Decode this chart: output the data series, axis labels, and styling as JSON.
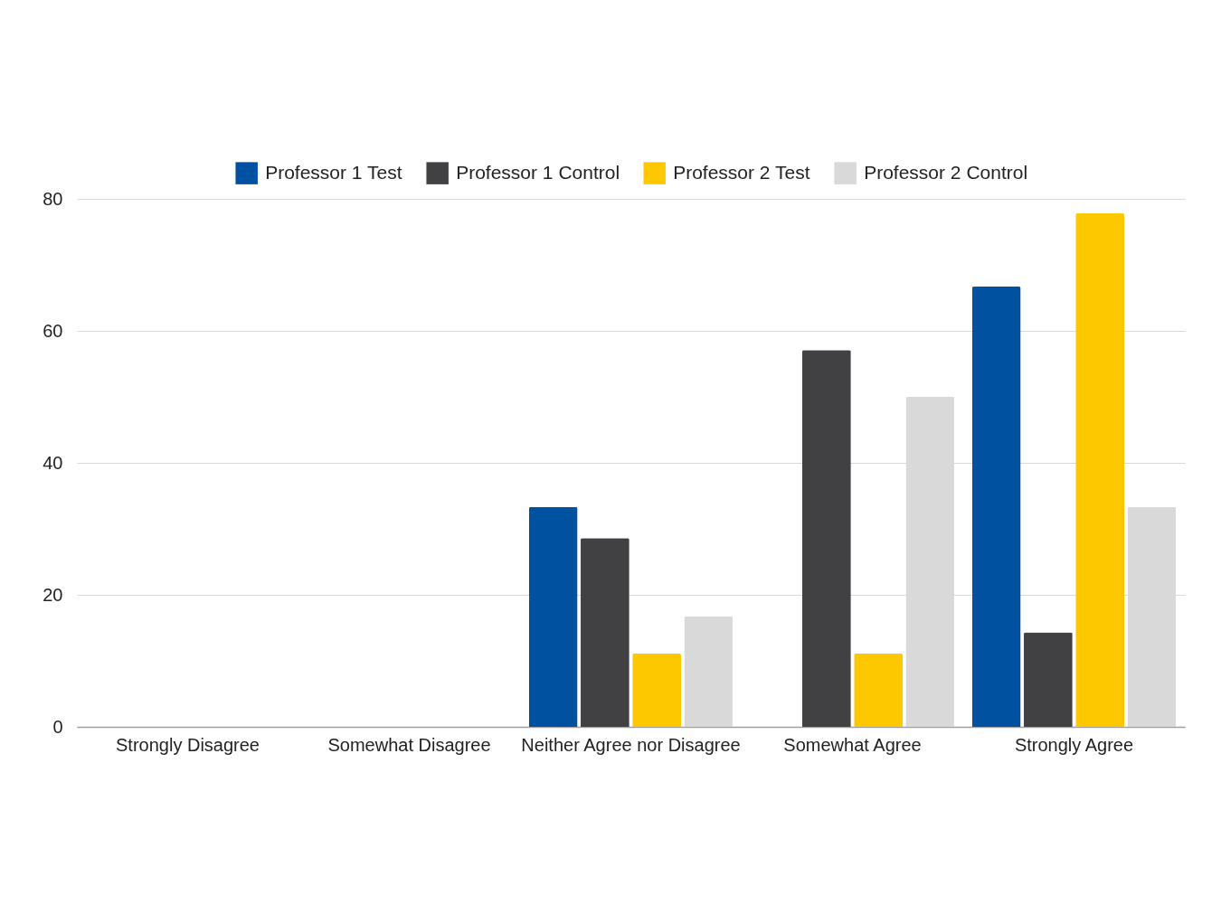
{
  "chart_data": {
    "type": "bar",
    "categories": [
      "Strongly Disagree",
      "Somewhat Disagree",
      "Neither Agree nor Disagree",
      "Somewhat Agree",
      "Strongly Agree"
    ],
    "series": [
      {
        "name": "Professor 1 Test",
        "color": "#0051a0",
        "values": [
          0,
          0,
          33.3,
          0,
          66.7
        ]
      },
      {
        "name": "Professor 1 Control",
        "color": "#414143",
        "values": [
          0,
          0,
          28.6,
          57.1,
          14.3
        ]
      },
      {
        "name": "Professor 2 Test",
        "color": "#fdc800",
        "values": [
          0,
          0,
          11.1,
          11.1,
          77.8
        ]
      },
      {
        "name": "Professor 2 Control",
        "color": "#d9d9d9",
        "values": [
          0,
          0,
          16.7,
          50,
          33.3
        ]
      }
    ],
    "ylim": [
      0,
      80
    ],
    "yticks": [
      0,
      20,
      40,
      60,
      80
    ],
    "grid": "y",
    "legend": "top"
  }
}
